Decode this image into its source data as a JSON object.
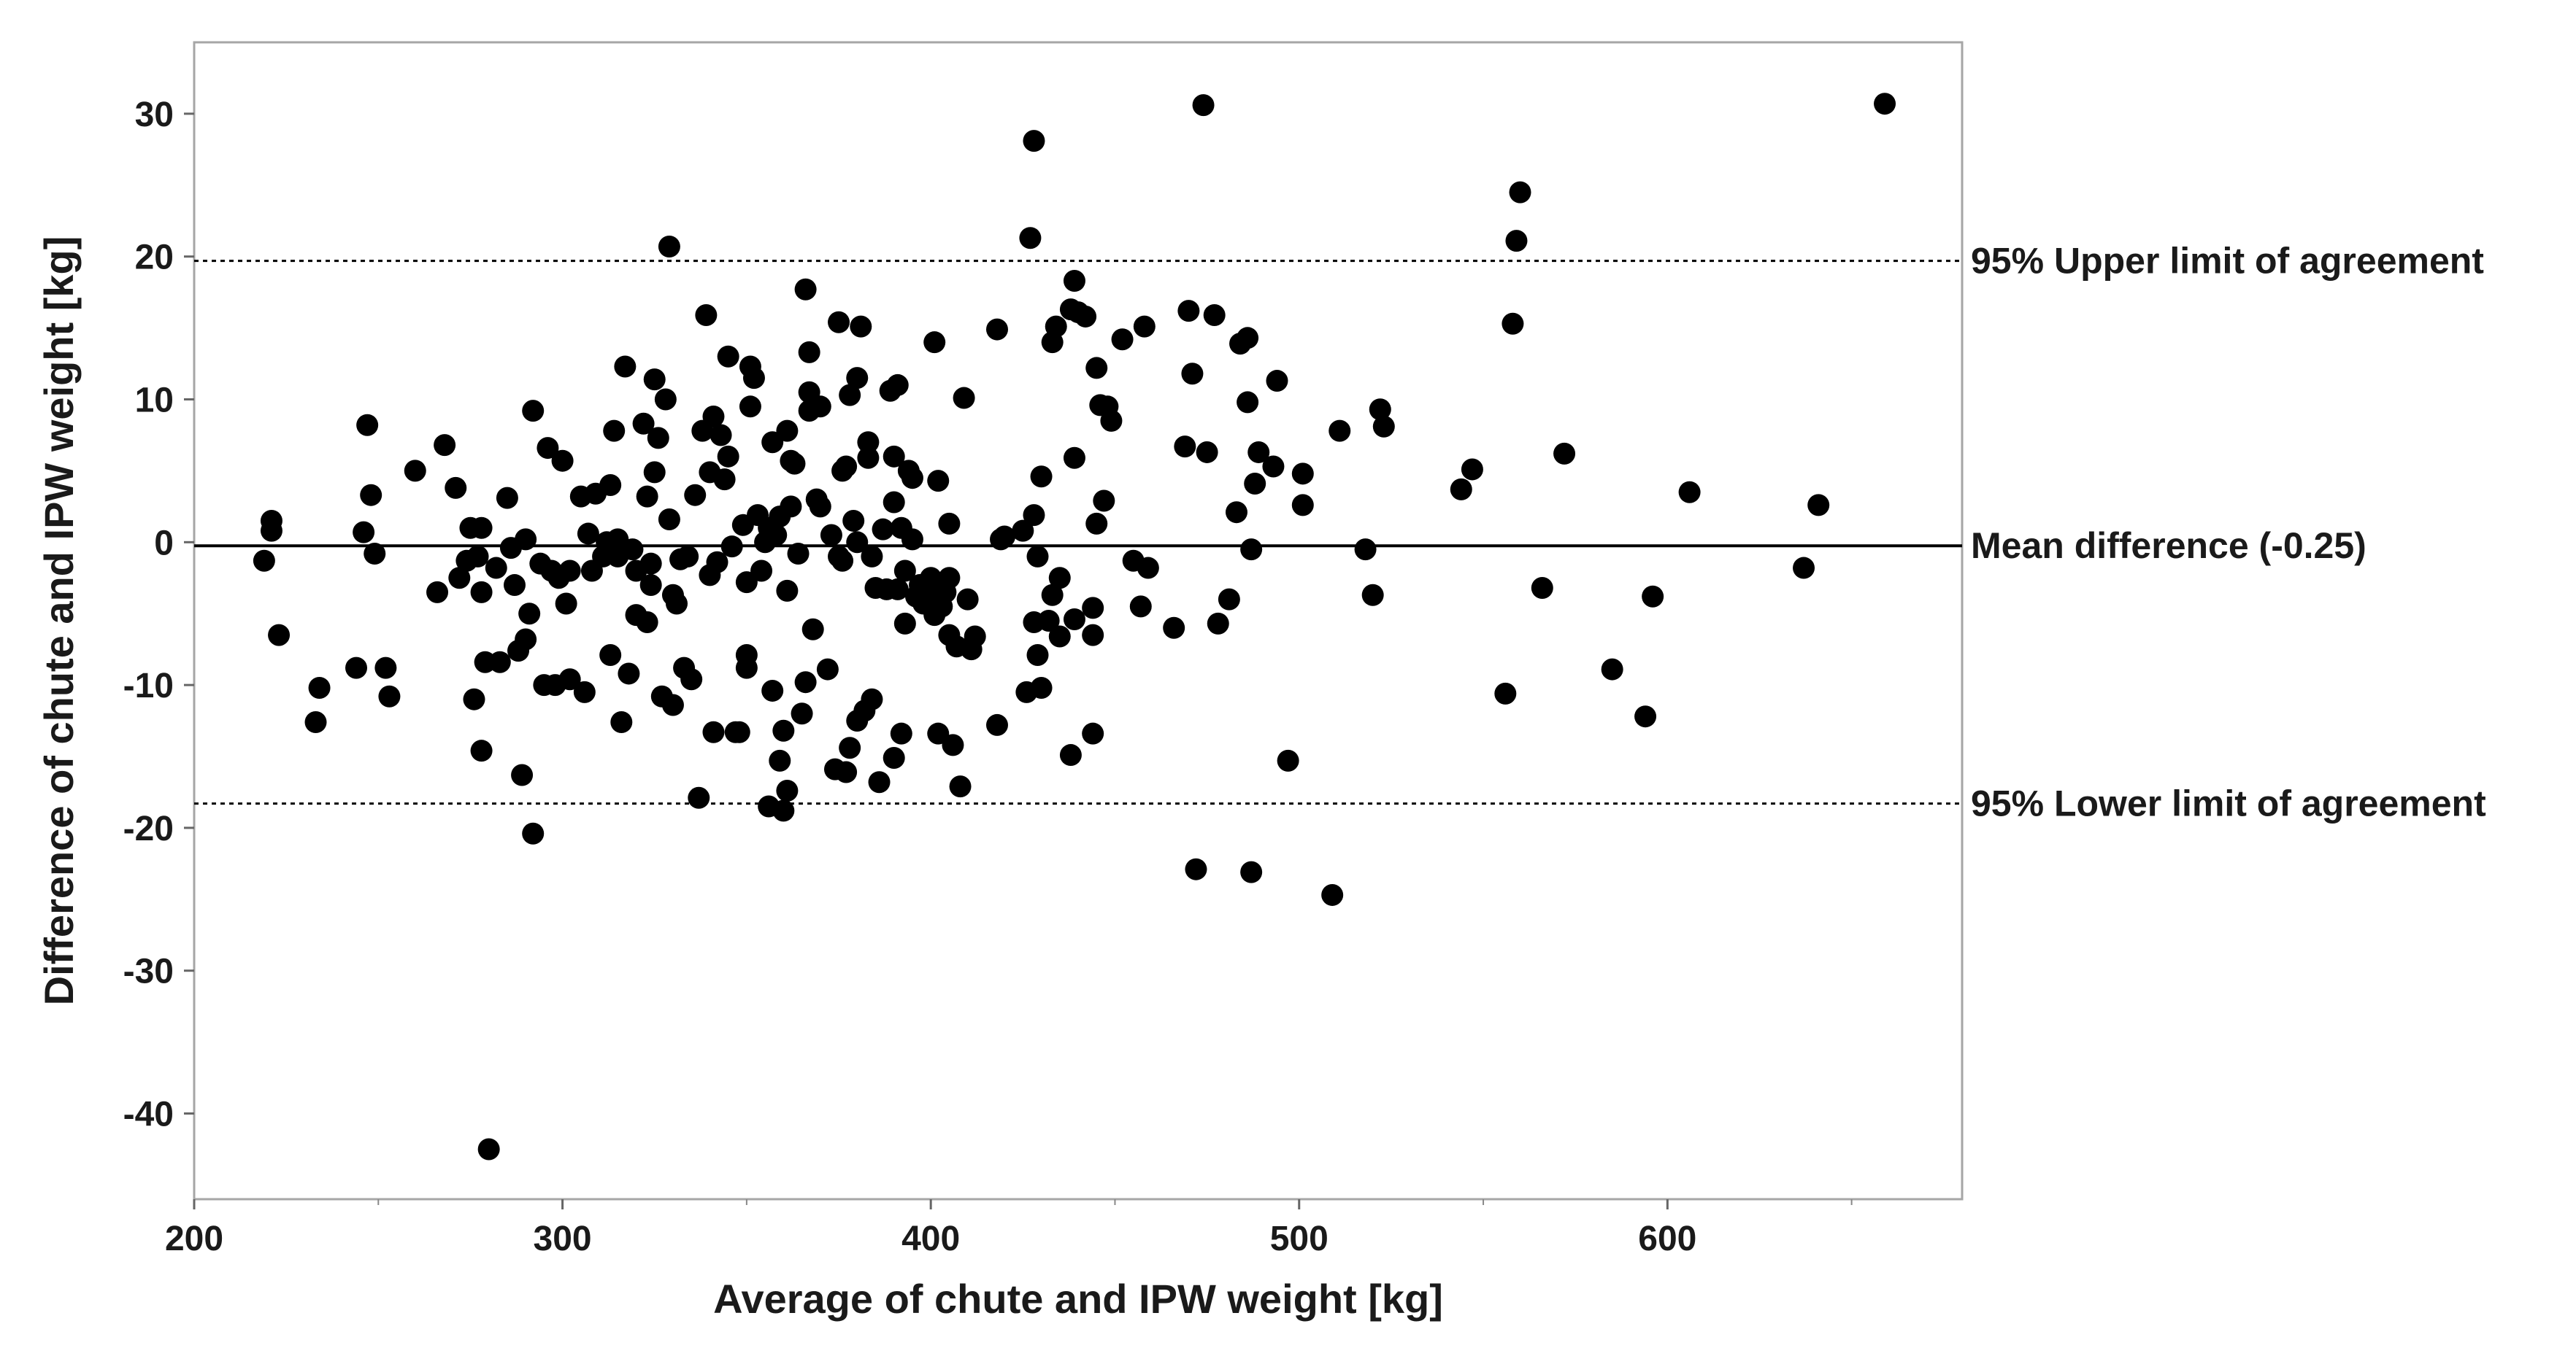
{
  "chart_data": {
    "type": "scatter",
    "title": "",
    "xlabel": "Average of chute and IPW weight [kg]",
    "ylabel": "Difference of chute and IPW weight [kg]",
    "xlim": [
      200,
      680
    ],
    "ylim": [
      -46,
      35
    ],
    "xticks": [
      200,
      300,
      400,
      500,
      600
    ],
    "xticks_minor": [
      250,
      350,
      450,
      550,
      650
    ],
    "yticks": [
      30,
      20,
      10,
      0,
      -10,
      -20,
      -30,
      -40
    ],
    "grid": false,
    "reference_lines": [
      {
        "label": "95% Upper limit of agreement",
        "y": 19.7,
        "style": "dotted"
      },
      {
        "label": "Mean difference (-0.25)",
        "y": -0.25,
        "style": "solid"
      },
      {
        "label": "95% Lower limit of agreement",
        "y": -18.3,
        "style": "dotted"
      }
    ],
    "points": [
      [
        219,
        -1.3
      ],
      [
        221,
        1.5
      ],
      [
        221,
        0.8
      ],
      [
        223,
        -6.5
      ],
      [
        233,
        -12.6
      ],
      [
        234,
        -10.2
      ],
      [
        244,
        -8.8
      ],
      [
        246,
        0.7
      ],
      [
        247,
        8.2
      ],
      [
        248,
        3.3
      ],
      [
        249,
        -0.8
      ],
      [
        252,
        -8.8
      ],
      [
        253,
        -10.8
      ],
      [
        260,
        5.0
      ],
      [
        266,
        -3.5
      ],
      [
        268,
        6.8
      ],
      [
        271,
        3.8
      ],
      [
        272,
        -2.5
      ],
      [
        274,
        -1.3
      ],
      [
        275,
        1.0
      ],
      [
        276,
        -11.0
      ],
      [
        277,
        -1.0
      ],
      [
        278,
        1.0
      ],
      [
        278,
        -3.5
      ],
      [
        278,
        -14.6
      ],
      [
        279,
        -8.4
      ],
      [
        280,
        -42.5
      ],
      [
        282,
        -1.8
      ],
      [
        283,
        -8.4
      ],
      [
        285,
        3.1
      ],
      [
        286,
        -0.4
      ],
      [
        287,
        -3.0
      ],
      [
        288,
        -7.6
      ],
      [
        289,
        -16.3
      ],
      [
        290,
        0.2
      ],
      [
        290,
        -6.8
      ],
      [
        291,
        -5.0
      ],
      [
        292,
        9.2
      ],
      [
        292,
        -20.4
      ],
      [
        294,
        -1.5
      ],
      [
        295,
        -10.0
      ],
      [
        296,
        6.6
      ],
      [
        297,
        -2.0
      ],
      [
        298,
        -10.0
      ],
      [
        299,
        -2.5
      ],
      [
        300,
        5.7
      ],
      [
        301,
        -4.3
      ],
      [
        302,
        -9.6
      ],
      [
        302,
        -2.0
      ],
      [
        305,
        3.2
      ],
      [
        306,
        -10.5
      ],
      [
        307,
        0.6
      ],
      [
        308,
        -2.0
      ],
      [
        309,
        3.4
      ],
      [
        311,
        -1.0
      ],
      [
        312,
        0.0
      ],
      [
        313,
        4.0
      ],
      [
        313,
        -7.9
      ],
      [
        314,
        7.8
      ],
      [
        315,
        0.2
      ],
      [
        315,
        -1.0
      ],
      [
        316,
        -12.6
      ],
      [
        317,
        12.3
      ],
      [
        318,
        -9.2
      ],
      [
        319,
        -0.5
      ],
      [
        320,
        -5.1
      ],
      [
        320,
        -2.0
      ],
      [
        322,
        8.3
      ],
      [
        323,
        -5.6
      ],
      [
        323,
        3.2
      ],
      [
        324,
        -3.0
      ],
      [
        324,
        -1.5
      ],
      [
        325,
        4.9
      ],
      [
        325,
        11.4
      ],
      [
        326,
        7.3
      ],
      [
        327,
        -10.8
      ],
      [
        328,
        10.0
      ],
      [
        329,
        1.6
      ],
      [
        329,
        20.7
      ],
      [
        330,
        -3.7
      ],
      [
        330,
        -11.4
      ],
      [
        331,
        -4.3
      ],
      [
        332,
        -1.2
      ],
      [
        333,
        -8.8
      ],
      [
        334,
        -1.0
      ],
      [
        335,
        -9.6
      ],
      [
        336,
        3.3
      ],
      [
        337,
        -17.9
      ],
      [
        338,
        7.8
      ],
      [
        339,
        15.9
      ],
      [
        340,
        -2.3
      ],
      [
        340,
        4.9
      ],
      [
        341,
        8.8
      ],
      [
        341,
        -13.3
      ],
      [
        342,
        -1.4
      ],
      [
        343,
        7.5
      ],
      [
        344,
        4.4
      ],
      [
        345,
        6.0
      ],
      [
        345,
        13.0
      ],
      [
        346,
        -0.3
      ],
      [
        347,
        -13.3
      ],
      [
        348,
        -13.3
      ],
      [
        349,
        1.2
      ],
      [
        350,
        -2.8
      ],
      [
        350,
        -7.9
      ],
      [
        350,
        -8.8
      ],
      [
        351,
        9.5
      ],
      [
        351,
        12.3
      ],
      [
        352,
        11.5
      ],
      [
        353,
        1.9
      ],
      [
        354,
        -2.0
      ],
      [
        355,
        0.0
      ],
      [
        356,
        1.0
      ],
      [
        356,
        -18.5
      ],
      [
        357,
        7.0
      ],
      [
        357,
        -10.4
      ],
      [
        358,
        0.5
      ],
      [
        359,
        1.8
      ],
      [
        359,
        -15.3
      ],
      [
        360,
        -13.2
      ],
      [
        360,
        -18.8
      ],
      [
        361,
        7.8
      ],
      [
        361,
        -3.4
      ],
      [
        361,
        -17.4
      ],
      [
        362,
        2.5
      ],
      [
        362,
        5.7
      ],
      [
        363,
        5.5
      ],
      [
        364,
        -0.8
      ],
      [
        365,
        -12.0
      ],
      [
        366,
        -9.8
      ],
      [
        366,
        17.7
      ],
      [
        367,
        13.3
      ],
      [
        367,
        10.5
      ],
      [
        367,
        9.2
      ],
      [
        368,
        -6.1
      ],
      [
        369,
        3.0
      ],
      [
        370,
        9.5
      ],
      [
        370,
        2.5
      ],
      [
        372,
        -8.9
      ],
      [
        373,
        0.5
      ],
      [
        374,
        -15.9
      ],
      [
        375,
        15.4
      ],
      [
        375,
        -1.0
      ],
      [
        376,
        5.0
      ],
      [
        376,
        -1.3
      ],
      [
        377,
        5.3
      ],
      [
        377,
        -16.1
      ],
      [
        378,
        -14.4
      ],
      [
        378,
        10.3
      ],
      [
        379,
        1.5
      ],
      [
        380,
        11.5
      ],
      [
        380,
        0.0
      ],
      [
        380,
        -12.5
      ],
      [
        381,
        15.1
      ],
      [
        382,
        -11.8
      ],
      [
        383,
        5.9
      ],
      [
        383,
        7.0
      ],
      [
        384,
        -1.0
      ],
      [
        384,
        -11.0
      ],
      [
        385,
        -3.2
      ],
      [
        386,
        -16.8
      ],
      [
        387,
        0.9
      ],
      [
        388,
        -3.3
      ],
      [
        389,
        10.6
      ],
      [
        390,
        6.0
      ],
      [
        390,
        2.8
      ],
      [
        390,
        -15.1
      ],
      [
        391,
        -3.3
      ],
      [
        391,
        11.0
      ],
      [
        392,
        1.0
      ],
      [
        392,
        -13.4
      ],
      [
        393,
        -2.0
      ],
      [
        393,
        -5.7
      ],
      [
        394,
        5.0
      ],
      [
        395,
        4.5
      ],
      [
        395,
        0.2
      ],
      [
        396,
        -3.8
      ],
      [
        397,
        -3.0
      ],
      [
        398,
        -4.3
      ],
      [
        399,
        -3.5
      ],
      [
        400,
        -2.5
      ],
      [
        401,
        14.0
      ],
      [
        401,
        -5.1
      ],
      [
        402,
        4.3
      ],
      [
        402,
        -13.4
      ],
      [
        403,
        -4.5
      ],
      [
        403,
        -3.0
      ],
      [
        404,
        -3.5
      ],
      [
        405,
        1.3
      ],
      [
        405,
        -2.5
      ],
      [
        405,
        -6.5
      ],
      [
        406,
        -14.2
      ],
      [
        407,
        -7.3
      ],
      [
        408,
        -17.1
      ],
      [
        409,
        10.1
      ],
      [
        410,
        -4.0
      ],
      [
        411,
        -7.5
      ],
      [
        412,
        -6.6
      ],
      [
        418,
        14.9
      ],
      [
        418,
        -12.8
      ],
      [
        419,
        0.2
      ],
      [
        420,
        0.4
      ],
      [
        425,
        0.8
      ],
      [
        426,
        -10.5
      ],
      [
        427,
        21.3
      ],
      [
        428,
        1.9
      ],
      [
        428,
        28.1
      ],
      [
        428,
        -5.6
      ],
      [
        429,
        -1.0
      ],
      [
        429,
        -7.9
      ],
      [
        430,
        4.6
      ],
      [
        430,
        -10.2
      ],
      [
        432,
        -5.5
      ],
      [
        433,
        14.0
      ],
      [
        433,
        -3.7
      ],
      [
        434,
        15.1
      ],
      [
        435,
        -6.6
      ],
      [
        435,
        -2.5
      ],
      [
        438,
        16.3
      ],
      [
        438,
        -14.9
      ],
      [
        439,
        18.3
      ],
      [
        439,
        5.9
      ],
      [
        439,
        -5.4
      ],
      [
        440,
        16.1
      ],
      [
        442,
        15.8
      ],
      [
        444,
        -4.6
      ],
      [
        444,
        -6.5
      ],
      [
        444,
        -13.4
      ],
      [
        445,
        1.3
      ],
      [
        445,
        12.2
      ],
      [
        446,
        9.6
      ],
      [
        447,
        2.9
      ],
      [
        448,
        9.5
      ],
      [
        449,
        8.5
      ],
      [
        452,
        14.2
      ],
      [
        455,
        -1.3
      ],
      [
        457,
        -4.5
      ],
      [
        458,
        15.1
      ],
      [
        459,
        -1.8
      ],
      [
        466,
        -6.0
      ],
      [
        469,
        6.7
      ],
      [
        470,
        16.2
      ],
      [
        471,
        11.8
      ],
      [
        472,
        -22.9
      ],
      [
        474,
        30.6
      ],
      [
        475,
        6.3
      ],
      [
        477,
        15.9
      ],
      [
        478,
        -5.7
      ],
      [
        481,
        -4.0
      ],
      [
        483,
        2.1
      ],
      [
        484,
        13.9
      ],
      [
        486,
        14.3
      ],
      [
        486,
        9.8
      ],
      [
        487,
        -0.5
      ],
      [
        487,
        -23.1
      ],
      [
        488,
        4.1
      ],
      [
        489,
        6.3
      ],
      [
        493,
        5.3
      ],
      [
        494,
        11.3
      ],
      [
        497,
        -15.3
      ],
      [
        501,
        2.6
      ],
      [
        501,
        4.8
      ],
      [
        509,
        -24.7
      ],
      [
        511,
        7.8
      ],
      [
        518,
        -0.5
      ],
      [
        520,
        -3.7
      ],
      [
        522,
        9.3
      ],
      [
        523,
        8.1
      ],
      [
        544,
        3.7
      ],
      [
        547,
        5.1
      ],
      [
        556,
        -10.6
      ],
      [
        558,
        15.3
      ],
      [
        559,
        21.1
      ],
      [
        560,
        24.5
      ],
      [
        566,
        -3.2
      ],
      [
        572,
        6.2
      ],
      [
        585,
        -8.9
      ],
      [
        594,
        -12.2
      ],
      [
        596,
        -3.8
      ],
      [
        606,
        3.5
      ],
      [
        637,
        -1.8
      ],
      [
        641,
        2.6
      ],
      [
        659,
        30.7
      ]
    ]
  }
}
